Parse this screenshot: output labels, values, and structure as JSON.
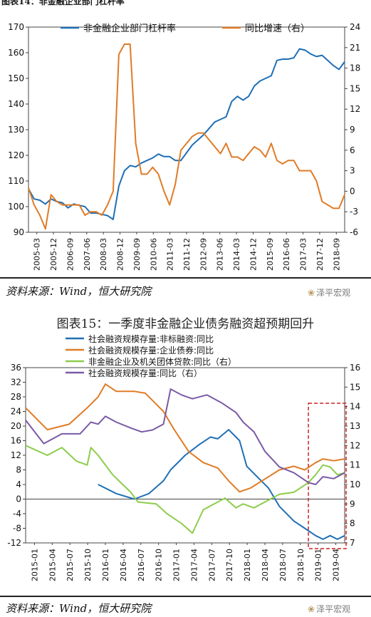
{
  "top_title_fragment": "图表14：非金融企业部门杠杆率",
  "top_right_fragment": "",
  "source1": "资料来源：Wind，恒大研究院",
  "source2": "资料来源：Wind，恒大研究院",
  "logo_text": "泽平宏观",
  "chart2_caption": "图表15：一季度非金融企业债务融资超预期回升",
  "colors": {
    "blue": "#1f6fb5",
    "orange": "#e07b25",
    "green": "#8dcc4b",
    "purple": "#7a5aa6",
    "red": "#cc2222"
  },
  "chart_data": [
    {
      "type": "line",
      "title": "",
      "xlabel": "",
      "ylabel": "",
      "ylim": [
        90,
        170
      ],
      "y2lim": [
        -6,
        24
      ],
      "yticks": [
        90,
        100,
        110,
        120,
        130,
        140,
        150,
        160,
        170
      ],
      "y2ticks": [
        -6,
        -3,
        0,
        3,
        6,
        9,
        12,
        15,
        18,
        21,
        24
      ],
      "x_start": 2005.0,
      "x_end": 2019.0,
      "x_tick_labels": [
        "2005-03",
        "2005-12",
        "2006-09",
        "2007-06",
        "2008-03",
        "2008-12",
        "2009-09",
        "2010-06",
        "2011-03",
        "2011-12",
        "2012-09",
        "2013-06",
        "2014-03",
        "2014-12",
        "2015-09",
        "2016-06",
        "2017-03",
        "2017-12",
        "2018-09"
      ],
      "legend_position": "top",
      "series": [
        {
          "name": "非金融企业部门杠杆率",
          "axis": "left",
          "color": "#1f6fb5",
          "points": [
            [
              2005.0,
              107
            ],
            [
              2005.25,
              103
            ],
            [
              2005.5,
              102.5
            ],
            [
              2005.75,
              101
            ],
            [
              2006.0,
              103
            ],
            [
              2006.25,
              102
            ],
            [
              2006.5,
              101.5
            ],
            [
              2006.75,
              99.5
            ],
            [
              2007.0,
              101
            ],
            [
              2007.25,
              100.5
            ],
            [
              2007.5,
              100
            ],
            [
              2007.75,
              97.5
            ],
            [
              2008.0,
              97.5
            ],
            [
              2008.25,
              97
            ],
            [
              2008.5,
              96.5
            ],
            [
              2008.75,
              95
            ],
            [
              2009.0,
              108
            ],
            [
              2009.25,
              114
            ],
            [
              2009.5,
              116
            ],
            [
              2009.75,
              115.5
            ],
            [
              2010.0,
              117
            ],
            [
              2010.25,
              118
            ],
            [
              2010.5,
              119
            ],
            [
              2010.75,
              120.5
            ],
            [
              2011.0,
              119.5
            ],
            [
              2011.25,
              119.5
            ],
            [
              2011.5,
              118
            ],
            [
              2011.75,
              118
            ],
            [
              2012.0,
              121
            ],
            [
              2012.25,
              124
            ],
            [
              2012.5,
              126
            ],
            [
              2012.75,
              128
            ],
            [
              2013.0,
              130.5
            ],
            [
              2013.25,
              133
            ],
            [
              2013.5,
              134
            ],
            [
              2013.75,
              135
            ],
            [
              2014.0,
              141
            ],
            [
              2014.25,
              143
            ],
            [
              2014.5,
              141.5
            ],
            [
              2014.75,
              143
            ],
            [
              2015.0,
              147
            ],
            [
              2015.25,
              149
            ],
            [
              2015.5,
              150
            ],
            [
              2015.75,
              151
            ],
            [
              2016.0,
              157
            ],
            [
              2016.25,
              157.5
            ],
            [
              2016.5,
              157.5
            ],
            [
              2016.75,
              158
            ],
            [
              2017.0,
              161.5
            ],
            [
              2017.25,
              161
            ],
            [
              2017.5,
              159.5
            ],
            [
              2017.75,
              158.5
            ],
            [
              2018.0,
              159
            ],
            [
              2018.25,
              157
            ],
            [
              2018.5,
              155
            ],
            [
              2018.75,
              153.5
            ],
            [
              2019.0,
              156.5
            ]
          ]
        },
        {
          "name": "同比增速（右）",
          "axis": "right",
          "color": "#e07b25",
          "points": [
            [
              2005.0,
              0.5
            ],
            [
              2005.25,
              -2
            ],
            [
              2005.5,
              -3.5
            ],
            [
              2005.75,
              -5.5
            ],
            [
              2006.0,
              -0.5
            ],
            [
              2006.25,
              -1.5
            ],
            [
              2006.5,
              -2
            ],
            [
              2006.75,
              -2
            ],
            [
              2007.0,
              -2
            ],
            [
              2007.25,
              -2
            ],
            [
              2007.5,
              -3.5
            ],
            [
              2007.75,
              -3
            ],
            [
              2008.0,
              -3
            ],
            [
              2008.25,
              -3.5
            ],
            [
              2008.5,
              -2
            ],
            [
              2008.75,
              0
            ],
            [
              2009.0,
              20
            ],
            [
              2009.25,
              21.5
            ],
            [
              2009.5,
              21.5
            ],
            [
              2009.75,
              7
            ],
            [
              2010.0,
              2.5
            ],
            [
              2010.25,
              2.5
            ],
            [
              2010.5,
              3.5
            ],
            [
              2010.75,
              2.5
            ],
            [
              2011.0,
              0
            ],
            [
              2011.25,
              -2
            ],
            [
              2011.5,
              1
            ],
            [
              2011.75,
              6
            ],
            [
              2012.0,
              7
            ],
            [
              2012.25,
              8
            ],
            [
              2012.5,
              8.5
            ],
            [
              2012.75,
              8.5
            ],
            [
              2013.0,
              7.5
            ],
            [
              2013.25,
              6.5
            ],
            [
              2013.5,
              5.5
            ],
            [
              2013.75,
              7
            ],
            [
              2014.0,
              5
            ],
            [
              2014.25,
              5
            ],
            [
              2014.5,
              4.5
            ],
            [
              2014.75,
              5.5
            ],
            [
              2015.0,
              6.5
            ],
            [
              2015.25,
              6
            ],
            [
              2015.5,
              5
            ],
            [
              2015.75,
              7
            ],
            [
              2016.0,
              4.5
            ],
            [
              2016.25,
              4
            ],
            [
              2016.5,
              4.5
            ],
            [
              2016.75,
              4.5
            ],
            [
              2017.0,
              3
            ],
            [
              2017.25,
              3
            ],
            [
              2017.5,
              3
            ],
            [
              2017.75,
              1.5
            ],
            [
              2018.0,
              -1.5
            ],
            [
              2018.25,
              -2
            ],
            [
              2018.5,
              -2.5
            ],
            [
              2018.75,
              -2.5
            ],
            [
              2019.0,
              -0.5
            ]
          ]
        }
      ]
    },
    {
      "type": "line",
      "title": "",
      "xlabel": "",
      "ylabel": "",
      "ylim": [
        -12,
        36
      ],
      "y2lim": [
        7,
        16
      ],
      "yticks": [
        -12,
        -8,
        -4,
        0,
        4,
        8,
        12,
        16,
        20,
        24,
        28,
        32,
        36
      ],
      "y2ticks": [
        7,
        8,
        9,
        10,
        11,
        12,
        13,
        14,
        15,
        16
      ],
      "x_start": 2015.0,
      "x_end": 2019.4,
      "x_tick_labels": [
        "2015-01",
        "2015-04",
        "2015-07",
        "2015-10",
        "2016-01",
        "2016-04",
        "2016-07",
        "2016-10",
        "2017-01",
        "2017-04",
        "2017-07",
        "2017-10",
        "2018-01",
        "2018-04",
        "2018-07",
        "2018-10",
        "2019-01",
        "2019-04"
      ],
      "legend_position": "top",
      "highlight_box": {
        "x_from": 2018.9,
        "x_to": 2019.42,
        "style": "dashed",
        "color": "#cc2222"
      },
      "series": [
        {
          "name": "社会融资规模存量:非标融资:同比",
          "axis": "left",
          "color": "#1f6fb5",
          "points": [
            [
              2016.0,
              4
            ],
            [
              2016.25,
              1.5
            ],
            [
              2016.5,
              0
            ],
            [
              2016.7,
              1.5
            ],
            [
              2016.9,
              5
            ],
            [
              2017.0,
              8
            ],
            [
              2017.2,
              12
            ],
            [
              2017.4,
              15
            ],
            [
              2017.55,
              17
            ],
            [
              2017.65,
              16.5
            ],
            [
              2017.8,
              19
            ],
            [
              2017.95,
              16
            ],
            [
              2018.05,
              9
            ],
            [
              2018.2,
              6
            ],
            [
              2018.35,
              3
            ],
            [
              2018.5,
              -2
            ],
            [
              2018.7,
              -6
            ],
            [
              2018.85,
              -8
            ],
            [
              2019.0,
              -10
            ],
            [
              2019.1,
              -11
            ],
            [
              2019.2,
              -10
            ],
            [
              2019.3,
              -11
            ],
            [
              2019.4,
              -10
            ]
          ]
        },
        {
          "name": "社会融资规模存量:企业债券:同比",
          "axis": "left",
          "color": "#e07b25",
          "points": [
            [
              2015.0,
              25
            ],
            [
              2015.3,
              19
            ],
            [
              2015.6,
              20.5
            ],
            [
              2015.85,
              25
            ],
            [
              2016.0,
              28
            ],
            [
              2016.1,
              31.5
            ],
            [
              2016.25,
              29.5
            ],
            [
              2016.5,
              29.5
            ],
            [
              2016.65,
              29
            ],
            [
              2016.75,
              27
            ],
            [
              2016.9,
              24
            ],
            [
              2017.05,
              19
            ],
            [
              2017.25,
              13
            ],
            [
              2017.45,
              10
            ],
            [
              2017.65,
              8.5
            ],
            [
              2017.8,
              5
            ],
            [
              2017.95,
              2
            ],
            [
              2018.1,
              3
            ],
            [
              2018.3,
              5.5
            ],
            [
              2018.5,
              8
            ],
            [
              2018.7,
              9
            ],
            [
              2018.85,
              8
            ],
            [
              2019.0,
              10
            ],
            [
              2019.1,
              11
            ],
            [
              2019.25,
              10.5
            ],
            [
              2019.4,
              11
            ]
          ]
        },
        {
          "name": "非金融企业及机关团体贷款:同比（右）",
          "axis": "right",
          "color": "#8dcc4b",
          "points": [
            [
              2015.0,
              12
            ],
            [
              2015.3,
              11.5
            ],
            [
              2015.5,
              11.9
            ],
            [
              2015.7,
              11.2
            ],
            [
              2015.85,
              11.0
            ],
            [
              2015.9,
              11.9
            ],
            [
              2016.0,
              11.5
            ],
            [
              2016.2,
              10.5
            ],
            [
              2016.45,
              9.6
            ],
            [
              2016.55,
              9.1
            ],
            [
              2016.8,
              9.0
            ],
            [
              2016.95,
              8.5
            ],
            [
              2017.15,
              8.0
            ],
            [
              2017.3,
              7.5
            ],
            [
              2017.45,
              8.7
            ],
            [
              2017.6,
              9.0
            ],
            [
              2017.75,
              9.3
            ],
            [
              2017.9,
              8.8
            ],
            [
              2018.0,
              9.0
            ],
            [
              2018.15,
              8.8
            ],
            [
              2018.3,
              9.1
            ],
            [
              2018.5,
              9.5
            ],
            [
              2018.7,
              9.6
            ],
            [
              2018.9,
              10.1
            ],
            [
              2019.0,
              10.5
            ],
            [
              2019.1,
              11.0
            ],
            [
              2019.2,
              10.9
            ],
            [
              2019.3,
              10.5
            ],
            [
              2019.4,
              10.6
            ]
          ]
        },
        {
          "name": "社会融资规模存量:同比（右）",
          "axis": "right",
          "color": "#7a5aa6",
          "points": [
            [
              2015.0,
              13.3
            ],
            [
              2015.25,
              12.1
            ],
            [
              2015.5,
              12.6
            ],
            [
              2015.75,
              12.6
            ],
            [
              2015.9,
              13.2
            ],
            [
              2016.0,
              13.1
            ],
            [
              2016.1,
              13.5
            ],
            [
              2016.25,
              13.2
            ],
            [
              2016.45,
              12.9
            ],
            [
              2016.6,
              12.7
            ],
            [
              2016.75,
              12.8
            ],
            [
              2016.9,
              13.1
            ],
            [
              2017.0,
              14.9
            ],
            [
              2017.15,
              14.6
            ],
            [
              2017.3,
              14.4
            ],
            [
              2017.5,
              14.6
            ],
            [
              2017.7,
              14.2
            ],
            [
              2017.9,
              13.7
            ],
            [
              2018.0,
              13.2
            ],
            [
              2018.15,
              12.7
            ],
            [
              2018.3,
              11.7
            ],
            [
              2018.5,
              10.9
            ],
            [
              2018.7,
              10.6
            ],
            [
              2018.9,
              10.1
            ],
            [
              2019.0,
              10.0
            ],
            [
              2019.1,
              10.4
            ],
            [
              2019.25,
              10.3
            ],
            [
              2019.4,
              10.6
            ]
          ]
        }
      ]
    }
  ]
}
